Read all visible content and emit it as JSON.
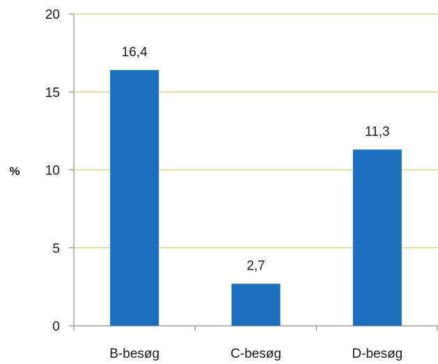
{
  "chart_data": {
    "type": "bar",
    "categories": [
      "B-besøg",
      "C-besøg",
      "D-besøg"
    ],
    "values": [
      16.4,
      2.7,
      11.3
    ],
    "data_labels": [
      "16,4",
      "2,7",
      "11,3"
    ],
    "title": "",
    "xlabel": "",
    "ylabel": "%",
    "ylim": [
      0,
      20
    ],
    "yticks": [
      0,
      5,
      10,
      15,
      20
    ],
    "ytick_labels": [
      "0",
      "5",
      "10",
      "15",
      "20"
    ],
    "grid": true,
    "legend": "none",
    "colors": {
      "bar": "#1c6fba",
      "grid": "#cfd47a",
      "axis": "#8c8c8c"
    }
  }
}
